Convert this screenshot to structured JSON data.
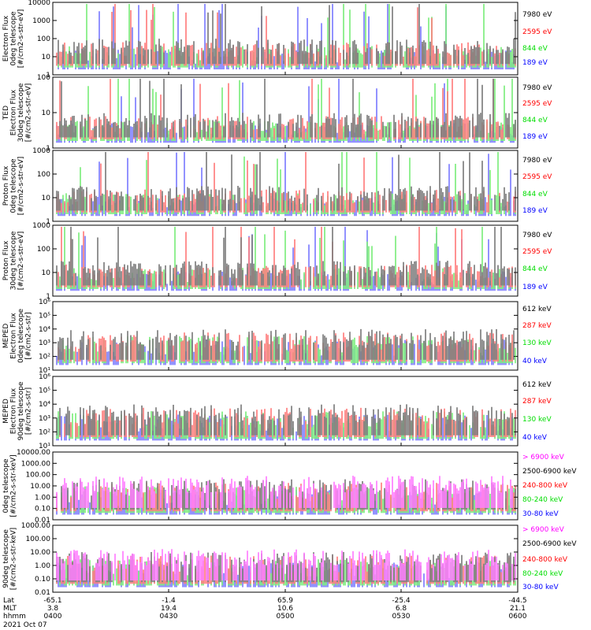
{
  "colors": {
    "blue": "#0000ff",
    "red": "#ff0000",
    "green": "#00dd00",
    "black": "#000000",
    "magenta": "#ff00ff"
  },
  "footer": {
    "row_labels": [
      "Lat",
      "MLT",
      "hhmm"
    ],
    "date": "2021 Oct 07",
    "ticks": [
      {
        "lat": "-65.1",
        "mlt": "3.8",
        "hhmm": "0400"
      },
      {
        "lat": "-1.4",
        "mlt": "19.4",
        "hhmm": "0430"
      },
      {
        "lat": "65.9",
        "mlt": "10.6",
        "hhmm": "0500"
      },
      {
        "lat": "-25.4",
        "mlt": "6.8",
        "hhmm": "0530"
      },
      {
        "lat": "-44.5",
        "mlt": "21.1",
        "hhmm": "0600"
      }
    ]
  },
  "chart_data": [
    {
      "type": "line",
      "panel": 1,
      "ylabel": [
        "Electron Flux",
        "0deg telescope",
        "[#/cm2-s-str-eV]"
      ],
      "ytick_labels": [
        "1",
        "10",
        "100",
        "1000",
        "10000"
      ],
      "log": true,
      "ylim": [
        1,
        10000
      ],
      "legend": [
        {
          "text": "7980 eV",
          "color": "black"
        },
        {
          "text": "2595 eV",
          "color": "red"
        },
        {
          "text": "844 eV",
          "color": "green"
        },
        {
          "text": "189 eV",
          "color": "blue"
        }
      ]
    },
    {
      "type": "line",
      "panel": 2,
      "ylabel": [
        "TED",
        "Electron Flux",
        "30deg telescope",
        "[#/cm2-s-str-eV]"
      ],
      "ytick_labels": [
        "1",
        "10",
        "100"
      ],
      "log": true,
      "ylim": [
        1,
        300
      ],
      "legend": [
        {
          "text": "7980 eV",
          "color": "black"
        },
        {
          "text": "2595 eV",
          "color": "red"
        },
        {
          "text": "844 eV",
          "color": "green"
        },
        {
          "text": "189 eV",
          "color": "blue"
        }
      ]
    },
    {
      "type": "line",
      "panel": 3,
      "ylabel": [
        "Proton Flux",
        "0deg telescope",
        "[#/cm2-s-str-eV]"
      ],
      "ytick_labels": [
        "1",
        "10",
        "100",
        "1000"
      ],
      "log": true,
      "ylim": [
        1,
        3000
      ],
      "legend": [
        {
          "text": "7980 eV",
          "color": "black"
        },
        {
          "text": "2595 eV",
          "color": "red"
        },
        {
          "text": "844 eV",
          "color": "green"
        },
        {
          "text": "189 eV",
          "color": "blue"
        }
      ]
    },
    {
      "type": "line",
      "panel": 4,
      "ylabel": [
        "Proton Flux",
        "30deg telescope",
        "[#/cm2-s-str-eV]"
      ],
      "ytick_labels": [
        "1",
        "10",
        "100",
        "1000"
      ],
      "log": true,
      "ylim": [
        1,
        3000
      ],
      "legend": [
        {
          "text": "7980 eV",
          "color": "black"
        },
        {
          "text": "2595 eV",
          "color": "red"
        },
        {
          "text": "844 eV",
          "color": "green"
        },
        {
          "text": "189 eV",
          "color": "blue"
        }
      ]
    },
    {
      "type": "line",
      "panel": 5,
      "ylabel": [
        "MEPED",
        "Electron Flux",
        "0deg telescope",
        "[#/cm2-s-str]"
      ],
      "ytick_labels": [
        "10¹",
        "10²",
        "10³",
        "10⁴",
        "10⁵",
        "10⁶"
      ],
      "log": true,
      "ylim": [
        10,
        1000000
      ],
      "legend": [
        {
          "text": "612 keV",
          "color": "black"
        },
        {
          "text": "287 keV",
          "color": "red"
        },
        {
          "text": "130 keV",
          "color": "green"
        },
        {
          "text": "40 keV",
          "color": "blue"
        }
      ]
    },
    {
      "type": "line",
      "panel": 6,
      "ylabel": [
        "MEPED",
        "Electron Flux",
        "90deg telescope",
        "[#/cm2-s-str]"
      ],
      "ytick_labels": [
        "10¹",
        "10²",
        "10³",
        "10⁴",
        "10⁵",
        "10⁶"
      ],
      "log": true,
      "ylim": [
        10,
        1000000
      ],
      "legend": [
        {
          "text": "612 keV",
          "color": "black"
        },
        {
          "text": "287 keV",
          "color": "red"
        },
        {
          "text": "130 keV",
          "color": "green"
        },
        {
          "text": "40 keV",
          "color": "blue"
        }
      ]
    },
    {
      "type": "line",
      "panel": 7,
      "ylabel": [
        "0deg telescope",
        "[#/cm2-s-str-keV]"
      ],
      "ytick_labels": [
        "0.01",
        "0.10",
        "1.00",
        "10.00",
        "100.00",
        "1000.00",
        "10000.00"
      ],
      "log": true,
      "ylim": [
        0.01,
        10000
      ],
      "legend": [
        {
          "text": "> 6900 keV",
          "color": "magenta"
        },
        {
          "text": "2500-6900 keV",
          "color": "black"
        },
        {
          "text": "240-800 keV",
          "color": "red"
        },
        {
          "text": "80-240 keV",
          "color": "green"
        },
        {
          "text": "30-80 keV",
          "color": "blue"
        }
      ]
    },
    {
      "type": "line",
      "panel": 8,
      "ylabel": [
        "90deg telescope",
        "[#/cm2-s-str-keV]"
      ],
      "ytick_labels": [
        "0.01",
        "0.10",
        "1.00",
        "10.00",
        "100.00",
        "1000.00"
      ],
      "log": true,
      "ylim": [
        0.01,
        1000
      ],
      "legend": [
        {
          "text": "> 6900 keV",
          "color": "magenta"
        },
        {
          "text": "2500-6900 keV",
          "color": "black"
        },
        {
          "text": "240-800 keV",
          "color": "red"
        },
        {
          "text": "80-240 keV",
          "color": "green"
        },
        {
          "text": "30-80 keV",
          "color": "blue"
        }
      ]
    }
  ]
}
